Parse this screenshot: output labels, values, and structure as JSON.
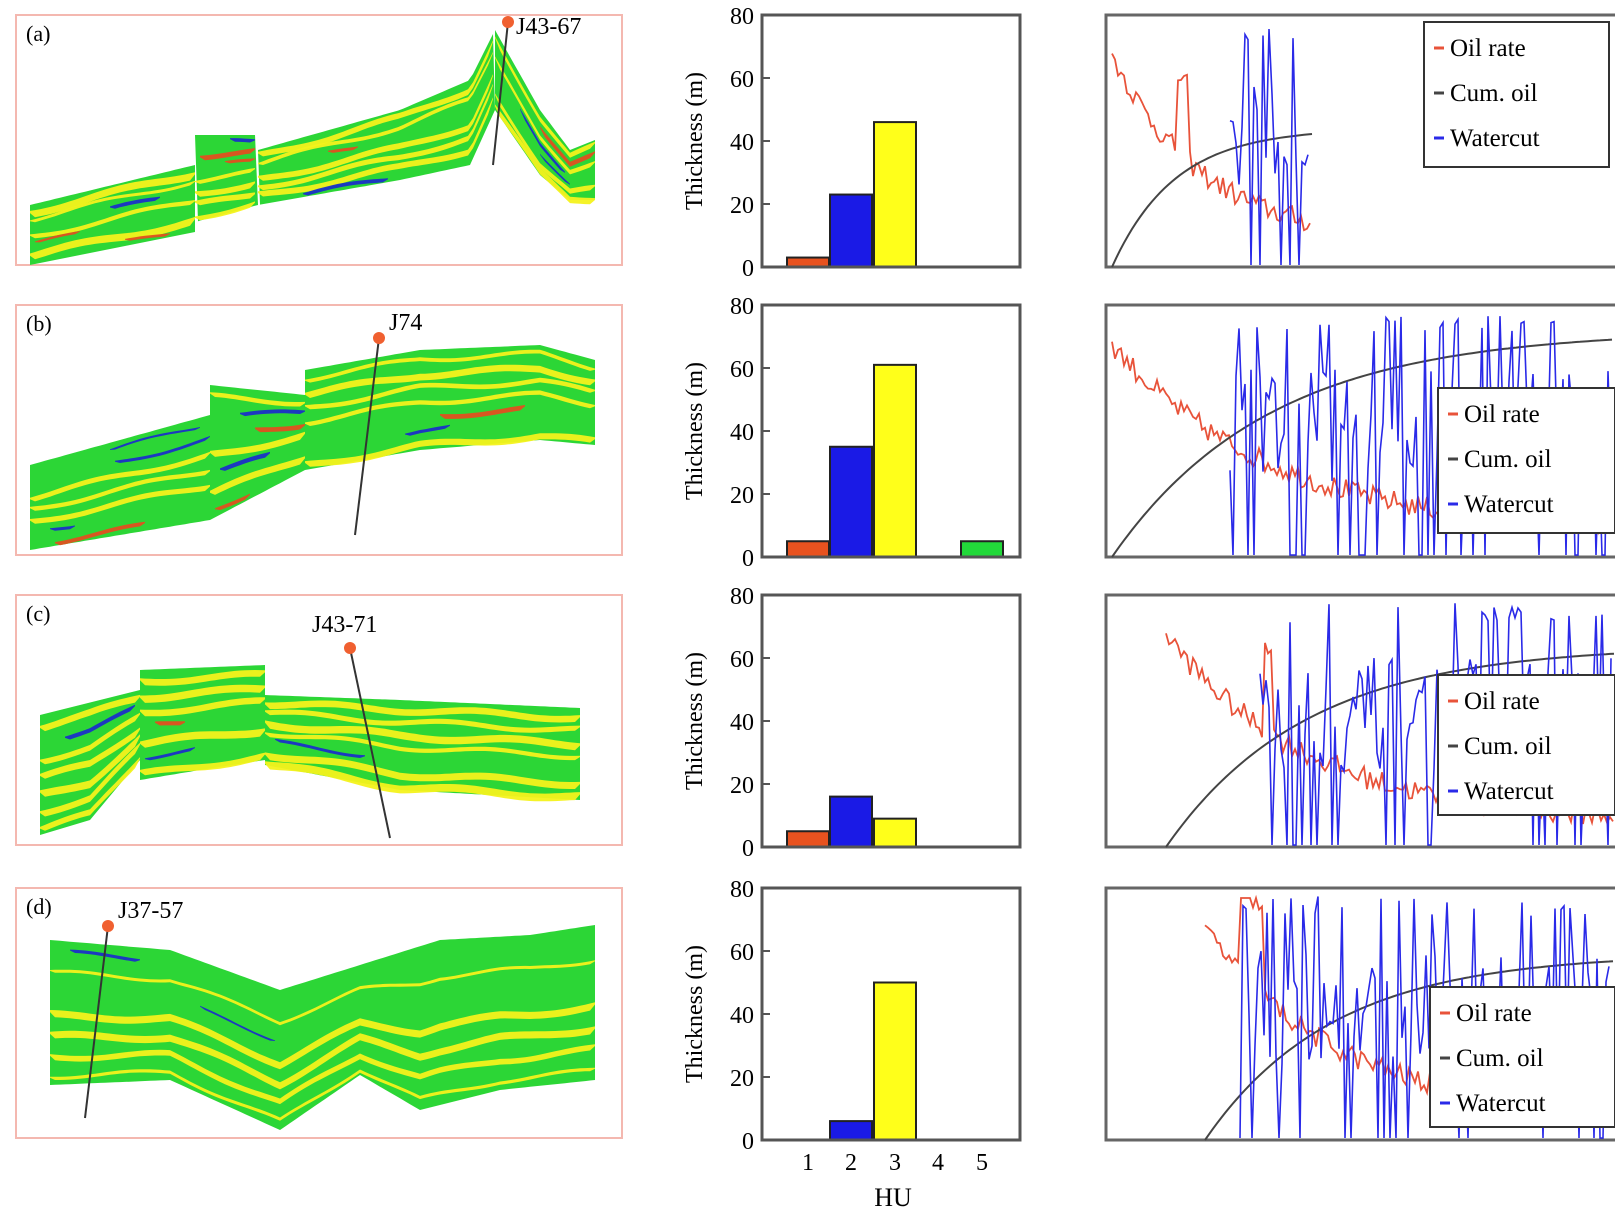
{
  "rows": [
    {
      "label": "(a)",
      "well": "J43-67",
      "bars": {
        "ylabel": "Thickness (m)",
        "yticks": [
          "0",
          "20",
          "40",
          "60",
          "80"
        ],
        "ylim": [
          0,
          80
        ],
        "values": [
          3,
          23,
          46,
          0,
          0
        ]
      },
      "legend": [
        "Oil rate",
        "Cum. oil",
        "Watercut"
      ]
    },
    {
      "label": "(b)",
      "well": "J74",
      "bars": {
        "ylabel": "Thickness (m)",
        "yticks": [
          "0",
          "20",
          "40",
          "60",
          "80"
        ],
        "ylim": [
          0,
          80
        ],
        "values": [
          5,
          35,
          61,
          0,
          5
        ]
      },
      "legend": [
        "Oil rate",
        "Cum. oil",
        "Watercut"
      ]
    },
    {
      "label": "(c)",
      "well": "J43-71",
      "bars": {
        "ylabel": "Thickness (m)",
        "yticks": [
          "0",
          "20",
          "40",
          "60",
          "80"
        ],
        "ylim": [
          0,
          80
        ],
        "values": [
          5,
          16,
          9,
          0,
          0
        ]
      },
      "legend": [
        "Oil rate",
        "Cum. oil",
        "Watercut"
      ]
    },
    {
      "label": "(d)",
      "well": "J37-57",
      "bars": {
        "ylabel": "Thickness (m)",
        "yticks": [
          "0",
          "20",
          "40",
          "60",
          "80"
        ],
        "ylim": [
          0,
          80
        ],
        "values": [
          0,
          6,
          50,
          0,
          0
        ]
      },
      "legend": [
        "Oil rate",
        "Cum. oil",
        "Watercut"
      ]
    }
  ],
  "chart_data": {
    "type": "bar",
    "categories": [
      "1",
      "2",
      "3",
      "4",
      "5"
    ],
    "xticks": [
      "1",
      "2",
      "3",
      "4",
      "5"
    ],
    "xlabel": "HU",
    "ylabel": "Thickness (m)",
    "ylim": [
      0,
      80
    ],
    "bar_colors": [
      "#e8521f",
      "#1a1ae6",
      "#ffff1a",
      "#ffffff",
      "#22d93a"
    ],
    "series": [
      {
        "panel": "(a)",
        "values": [
          3,
          23,
          46,
          0,
          0
        ]
      },
      {
        "panel": "(b)",
        "values": [
          5,
          35,
          61,
          0,
          5
        ]
      },
      {
        "panel": "(c)",
        "values": [
          5,
          16,
          9,
          0,
          0
        ]
      },
      {
        "panel": "(d)",
        "values": [
          0,
          6,
          50,
          0,
          0
        ]
      }
    ]
  },
  "colors": {
    "oil_rate": "#e8533a",
    "cum_oil": "#444444",
    "watercut": "#2a2ae8",
    "section_green": "#2cd636",
    "section_yellow": "#f4f21c",
    "section_blue": "#1b30c8",
    "section_red": "#e05020",
    "frame_pink": "#f4b8b0"
  }
}
